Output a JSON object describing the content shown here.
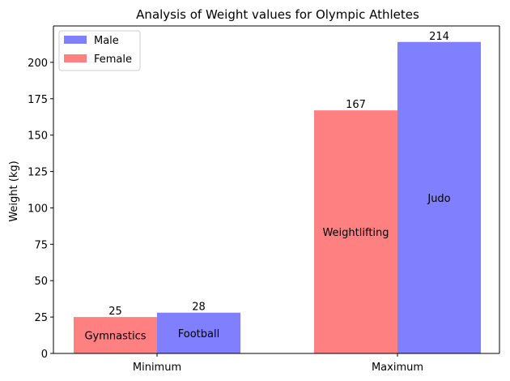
{
  "chart_data": {
    "type": "bar",
    "title": "Analysis of Weight values for Olympic Athletes",
    "xlabel": "",
    "ylabel": "Weight (kg)",
    "ylim": [
      0,
      225
    ],
    "yticks": [
      0,
      25,
      50,
      75,
      100,
      125,
      150,
      175,
      200
    ],
    "categories": [
      "Minimum",
      "Maximum"
    ],
    "series": [
      {
        "name": "Female",
        "color": "#ff8080",
        "values": [
          25,
          167
        ],
        "sports": [
          "Gymnastics",
          "Weightlifting"
        ]
      },
      {
        "name": "Male",
        "color": "#8080ff",
        "values": [
          28,
          214
        ],
        "sports": [
          "Football",
          "Judo"
        ]
      }
    ],
    "legend": {
      "position": "top-left",
      "entries": [
        "Male",
        "Female"
      ]
    },
    "grid": false
  }
}
